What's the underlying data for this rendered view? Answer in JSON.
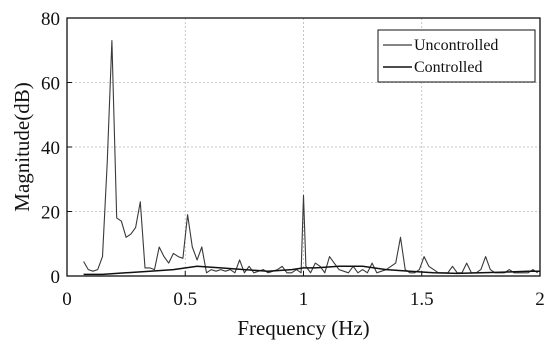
{
  "chart_data": {
    "type": "line",
    "title": "",
    "xlabel": "Frequency (Hz)",
    "ylabel": "Magnitude(dB)",
    "xlim": [
      0,
      2
    ],
    "ylim": [
      0,
      80
    ],
    "xticks": [
      0,
      0.5,
      1,
      1.5,
      2
    ],
    "xtick_labels": [
      "0",
      "0.5",
      "1",
      "1.5",
      "2"
    ],
    "yticks": [
      0,
      20,
      40,
      60,
      80
    ],
    "ytick_labels": [
      "0",
      "20",
      "40",
      "60",
      "80"
    ],
    "grid": true,
    "legend_position": "top-right",
    "series": [
      {
        "name": "Uncontrolled",
        "color": "#3a3a3a",
        "x": [
          0.07,
          0.09,
          0.11,
          0.13,
          0.15,
          0.17,
          0.19,
          0.21,
          0.23,
          0.25,
          0.27,
          0.29,
          0.31,
          0.33,
          0.35,
          0.37,
          0.39,
          0.41,
          0.43,
          0.45,
          0.47,
          0.49,
          0.51,
          0.53,
          0.55,
          0.57,
          0.59,
          0.61,
          0.63,
          0.65,
          0.67,
          0.69,
          0.71,
          0.73,
          0.75,
          0.77,
          0.79,
          0.81,
          0.83,
          0.85,
          0.87,
          0.89,
          0.91,
          0.93,
          0.95,
          0.97,
          0.99,
          1.0,
          1.01,
          1.03,
          1.05,
          1.07,
          1.09,
          1.11,
          1.13,
          1.15,
          1.17,
          1.19,
          1.21,
          1.23,
          1.25,
          1.27,
          1.29,
          1.31,
          1.33,
          1.35,
          1.37,
          1.39,
          1.41,
          1.43,
          1.45,
          1.47,
          1.49,
          1.51,
          1.53,
          1.55,
          1.57,
          1.59,
          1.61,
          1.63,
          1.65,
          1.67,
          1.69,
          1.71,
          1.73,
          1.75,
          1.77,
          1.79,
          1.81,
          1.83,
          1.85,
          1.87,
          1.89,
          1.91,
          1.93,
          1.95,
          1.97,
          1.99
        ],
        "values": [
          4.5,
          2,
          1.5,
          2,
          6,
          35,
          73,
          18,
          17,
          12,
          13,
          15,
          23,
          2.5,
          2.5,
          2,
          9,
          6,
          4,
          7,
          6,
          5.5,
          19,
          9,
          5,
          9,
          1,
          2,
          1.5,
          2,
          1.5,
          2,
          1,
          5,
          1,
          3,
          1,
          1.5,
          2,
          1,
          1.5,
          2,
          3,
          1,
          1,
          2,
          1,
          25,
          3,
          1,
          4,
          3,
          1,
          6,
          4,
          2,
          1.5,
          1,
          3,
          1,
          2,
          1,
          4,
          1,
          1.5,
          2,
          3,
          4,
          12,
          2,
          1,
          1,
          2,
          6,
          3,
          2,
          1,
          1,
          1,
          3,
          1,
          1,
          4,
          1,
          1,
          2,
          6,
          2,
          1,
          1,
          1,
          2,
          1,
          1,
          1,
          1,
          2,
          1
        ]
      },
      {
        "name": "Controlled",
        "color": "#111111",
        "x": [
          0.07,
          0.15,
          0.25,
          0.35,
          0.45,
          0.55,
          0.65,
          0.75,
          0.85,
          0.95,
          1.0,
          1.05,
          1.15,
          1.25,
          1.35,
          1.45,
          1.55,
          1.65,
          1.75,
          1.85,
          1.95,
          2.0
        ],
        "values": [
          0.5,
          0.5,
          1,
          1.5,
          2,
          3,
          2.5,
          2,
          1.5,
          2,
          2.5,
          2.5,
          3,
          3,
          2,
          1.5,
          1,
          0.8,
          1,
          1.2,
          1.5,
          1.5
        ]
      }
    ]
  }
}
